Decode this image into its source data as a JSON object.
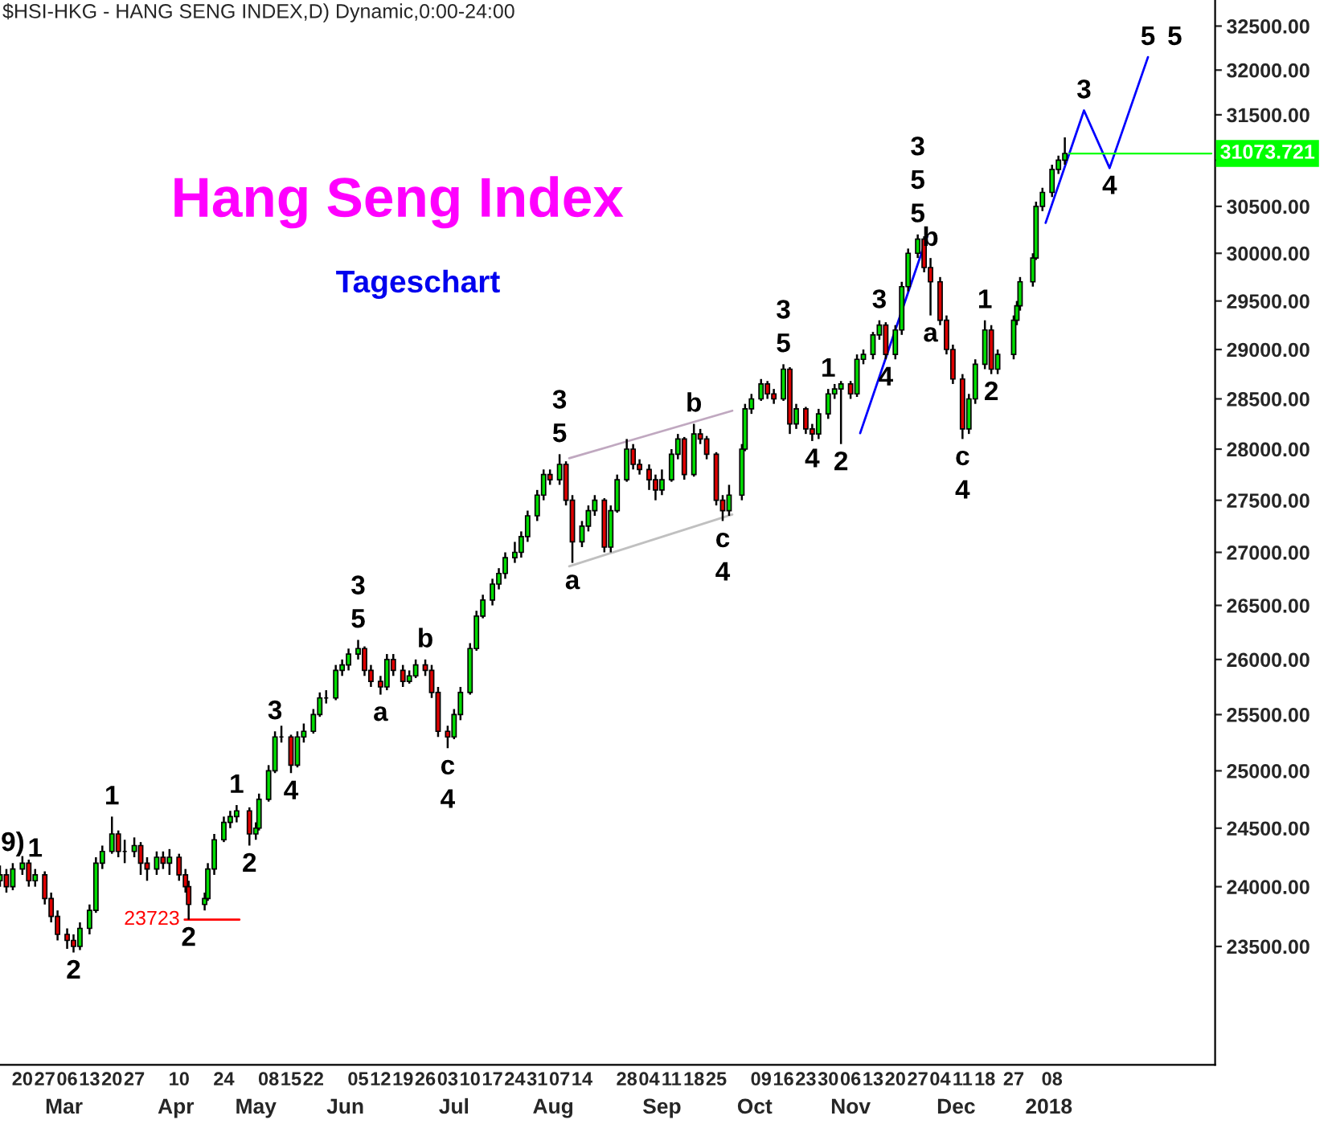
{
  "chart_data": {
    "type": "candlestick",
    "title": "Hang Seng Index",
    "subtitle": "Tageschart",
    "log": "y",
    "x": [
      "2017-02-13",
      "2017-02-15",
      "2017-02-17",
      "2017-02-20",
      "2017-02-22",
      "2017-02-24",
      "2017-02-27",
      "2017-03-01",
      "2017-03-03",
      "2017-03-06",
      "2017-03-08",
      "2017-03-10",
      "2017-03-13",
      "2017-03-15",
      "2017-03-17",
      "2017-03-20",
      "2017-03-22",
      "2017-03-24",
      "2017-03-27",
      "2017-03-29",
      "2017-03-31",
      "2017-04-03",
      "2017-04-05",
      "2017-04-07",
      "2017-04-10",
      "2017-04-12",
      "2017-04-13",
      "2017-04-18",
      "2017-04-19",
      "2017-04-21",
      "2017-04-24",
      "2017-04-26",
      "2017-04-28",
      "2017-05-02",
      "2017-05-04",
      "2017-05-05",
      "2017-05-08",
      "2017-05-10",
      "2017-05-12",
      "2017-05-15",
      "2017-05-17",
      "2017-05-19",
      "2017-05-22",
      "2017-05-24",
      "2017-05-26",
      "2017-05-29",
      "2017-05-31",
      "2017-06-02",
      "2017-06-05",
      "2017-06-07",
      "2017-06-09",
      "2017-06-12",
      "2017-06-14",
      "2017-06-16",
      "2017-06-19",
      "2017-06-21",
      "2017-06-23",
      "2017-06-26",
      "2017-06-28",
      "2017-06-30",
      "2017-07-03",
      "2017-07-05",
      "2017-07-07",
      "2017-07-10",
      "2017-07-12",
      "2017-07-14",
      "2017-07-17",
      "2017-07-19",
      "2017-07-21",
      "2017-07-24",
      "2017-07-26",
      "2017-07-28",
      "2017-07-31",
      "2017-08-02",
      "2017-08-04",
      "2017-08-07",
      "2017-08-09",
      "2017-08-11",
      "2017-08-14",
      "2017-08-16",
      "2017-08-18",
      "2017-08-21",
      "2017-08-23",
      "2017-08-25",
      "2017-08-28",
      "2017-08-30",
      "2017-09-01",
      "2017-09-04",
      "2017-09-06",
      "2017-09-08",
      "2017-09-11",
      "2017-09-13",
      "2017-09-15",
      "2017-09-18",
      "2017-09-20",
      "2017-09-22",
      "2017-09-25",
      "2017-09-27",
      "2017-09-29",
      "2017-10-03",
      "2017-10-04",
      "2017-10-06",
      "2017-10-09",
      "2017-10-11",
      "2017-10-13",
      "2017-10-16",
      "2017-10-18",
      "2017-10-20",
      "2017-10-23",
      "2017-10-25",
      "2017-10-27",
      "2017-10-30",
      "2017-11-01",
      "2017-11-03",
      "2017-11-06",
      "2017-11-08",
      "2017-11-10",
      "2017-11-13",
      "2017-11-15",
      "2017-11-17",
      "2017-11-20",
      "2017-11-22",
      "2017-11-24",
      "2017-11-27",
      "2017-11-29",
      "2017-12-01",
      "2017-12-04",
      "2017-12-06",
      "2017-12-08",
      "2017-12-11",
      "2017-12-13",
      "2017-12-15",
      "2017-12-18",
      "2017-12-20",
      "2017-12-22",
      "2017-12-27",
      "2017-12-28",
      "2017-12-29",
      "2018-01-02",
      "2018-01-03",
      "2018-01-05",
      "2018-01-08",
      "2018-01-10",
      "2018-01-12"
    ],
    "ohlc": [
      [
        24050,
        24180,
        24000,
        24100
      ],
      [
        24100,
        24150,
        23950,
        24000
      ],
      [
        24000,
        24200,
        23970,
        24150
      ],
      [
        24150,
        24260,
        24100,
        24200
      ],
      [
        24200,
        24230,
        24000,
        24050
      ],
      [
        24050,
        24150,
        24000,
        24100
      ],
      [
        24100,
        24130,
        23850,
        23900
      ],
      [
        23900,
        23950,
        23700,
        23750
      ],
      [
        23750,
        23800,
        23550,
        23600
      ],
      [
        23600,
        23650,
        23480,
        23550
      ],
      [
        23550,
        23600,
        23450,
        23500
      ],
      [
        23500,
        23700,
        23470,
        23650
      ],
      [
        23650,
        23850,
        23600,
        23800
      ],
      [
        23800,
        24250,
        23780,
        24200
      ],
      [
        24200,
        24350,
        24150,
        24300
      ],
      [
        24300,
        24600,
        24280,
        24450
      ],
      [
        24450,
        24480,
        24250,
        24300
      ],
      [
        24300,
        24400,
        24200,
        24300
      ],
      [
        24300,
        24420,
        24250,
        24350
      ],
      [
        24350,
        24380,
        24100,
        24200
      ],
      [
        24200,
        24250,
        24050,
        24150
      ],
      [
        24150,
        24300,
        24100,
        24250
      ],
      [
        24250,
        24300,
        24150,
        24200
      ],
      [
        24200,
        24320,
        24100,
        24250
      ],
      [
        24250,
        24280,
        24050,
        24100
      ],
      [
        24100,
        24150,
        23950,
        24000
      ],
      [
        24000,
        24050,
        23723,
        23850
      ],
      [
        23850,
        23950,
        23800,
        23900
      ],
      [
        23900,
        24200,
        23880,
        24150
      ],
      [
        24150,
        24450,
        24100,
        24400
      ],
      [
        24400,
        24600,
        24380,
        24550
      ],
      [
        24550,
        24650,
        24500,
        24600
      ],
      [
        24600,
        24700,
        24550,
        24650
      ],
      [
        24650,
        24680,
        24350,
        24450
      ],
      [
        24450,
        24550,
        24400,
        24500
      ],
      [
        24500,
        24800,
        24480,
        24750
      ],
      [
        24750,
        25050,
        24730,
        25000
      ],
      [
        25000,
        25350,
        24980,
        25300
      ],
      [
        25300,
        25400,
        25250,
        25300
      ],
      [
        25300,
        25320,
        24980,
        25050
      ],
      [
        25050,
        25350,
        25030,
        25300
      ],
      [
        25300,
        25420,
        25250,
        25350
      ],
      [
        25350,
        25550,
        25330,
        25500
      ],
      [
        25500,
        25700,
        25480,
        25650
      ],
      [
        25650,
        25720,
        25600,
        25650
      ],
      [
        25650,
        25950,
        25630,
        25900
      ],
      [
        25900,
        26000,
        25850,
        25950
      ],
      [
        25950,
        26100,
        25900,
        26050
      ],
      [
        26050,
        26180,
        26000,
        26100
      ],
      [
        26100,
        26120,
        25850,
        25900
      ],
      [
        25900,
        25950,
        25750,
        25800
      ],
      [
        25800,
        25850,
        25680,
        25750
      ],
      [
        25750,
        26050,
        25720,
        26000
      ],
      [
        26000,
        26050,
        25850,
        25900
      ],
      [
        25900,
        25950,
        25750,
        25800
      ],
      [
        25800,
        25900,
        25780,
        25850
      ],
      [
        25850,
        26000,
        25830,
        25950
      ],
      [
        25950,
        26000,
        25850,
        25900
      ],
      [
        25900,
        25950,
        25650,
        25700
      ],
      [
        25700,
        25750,
        25300,
        25350
      ],
      [
        25350,
        25400,
        25200,
        25300
      ],
      [
        25300,
        25550,
        25280,
        25500
      ],
      [
        25500,
        25750,
        25450,
        25700
      ],
      [
        25700,
        26150,
        25680,
        26100
      ],
      [
        26100,
        26450,
        26080,
        26400
      ],
      [
        26400,
        26600,
        26380,
        26550
      ],
      [
        26550,
        26750,
        26500,
        26700
      ],
      [
        26700,
        26850,
        26650,
        26800
      ],
      [
        26800,
        27000,
        26750,
        26950
      ],
      [
        26950,
        27100,
        26900,
        27000
      ],
      [
        27000,
        27200,
        26950,
        27150
      ],
      [
        27150,
        27400,
        27100,
        27350
      ],
      [
        27350,
        27600,
        27300,
        27550
      ],
      [
        27550,
        27800,
        27500,
        27750
      ],
      [
        27750,
        27800,
        27650,
        27700
      ],
      [
        27700,
        27950,
        27650,
        27850
      ],
      [
        27850,
        27880,
        27450,
        27500
      ],
      [
        27500,
        27550,
        26900,
        27100
      ],
      [
        27100,
        27300,
        27050,
        27250
      ],
      [
        27250,
        27450,
        27200,
        27400
      ],
      [
        27400,
        27550,
        27350,
        27500
      ],
      [
        27500,
        27520,
        27000,
        27050
      ],
      [
        27050,
        27450,
        27000,
        27400
      ],
      [
        27400,
        27750,
        27380,
        27700
      ],
      [
        27700,
        28100,
        27680,
        28000
      ],
      [
        28000,
        28050,
        27800,
        27850
      ],
      [
        27850,
        27900,
        27750,
        27800
      ],
      [
        27800,
        27850,
        27600,
        27700
      ],
      [
        27700,
        27750,
        27500,
        27600
      ],
      [
        27600,
        27800,
        27550,
        27700
      ],
      [
        27700,
        28000,
        27680,
        27950
      ],
      [
        27950,
        28150,
        27900,
        28100
      ],
      [
        28100,
        28120,
        27700,
        27750
      ],
      [
        27750,
        28250,
        27730,
        28150
      ],
      [
        28150,
        28200,
        28050,
        28100
      ],
      [
        28100,
        28130,
        27900,
        27950
      ],
      [
        27950,
        27970,
        27450,
        27500
      ],
      [
        27500,
        27550,
        27300,
        27400
      ],
      [
        27400,
        27650,
        27350,
        27550
      ],
      [
        27550,
        28050,
        27500,
        28000
      ],
      [
        28000,
        28450,
        27980,
        28400
      ],
      [
        28400,
        28550,
        28350,
        28500
      ],
      [
        28500,
        28700,
        28480,
        28650
      ],
      [
        28650,
        28680,
        28500,
        28550
      ],
      [
        28550,
        28600,
        28450,
        28500
      ],
      [
        28500,
        28850,
        28480,
        28800
      ],
      [
        28800,
        28820,
        28150,
        28250
      ],
      [
        28250,
        28450,
        28200,
        28400
      ],
      [
        28400,
        28420,
        28150,
        28200
      ],
      [
        28200,
        28250,
        28080,
        28150
      ],
      [
        28150,
        28400,
        28100,
        28350
      ],
      [
        28350,
        28600,
        28300,
        28550
      ],
      [
        28550,
        28650,
        28500,
        28600
      ],
      [
        28600,
        28680,
        28050,
        28650
      ],
      [
        28650,
        28680,
        28500,
        28550
      ],
      [
        28550,
        28950,
        28520,
        28900
      ],
      [
        28900,
        29000,
        28850,
        28950
      ],
      [
        28950,
        29180,
        28900,
        29150
      ],
      [
        29150,
        29300,
        29100,
        29250
      ],
      [
        29250,
        29280,
        28900,
        28950
      ],
      [
        28950,
        29250,
        28900,
        29200
      ],
      [
        29200,
        29700,
        29150,
        29650
      ],
      [
        29650,
        30050,
        29600,
        30000
      ],
      [
        30000,
        30200,
        29950,
        30150
      ],
      [
        30150,
        30180,
        29800,
        29850
      ],
      [
        29850,
        29950,
        29350,
        29700
      ],
      [
        29700,
        29750,
        29250,
        29300
      ],
      [
        29300,
        29350,
        28950,
        29000
      ],
      [
        29000,
        29050,
        28650,
        28700
      ],
      [
        28700,
        28750,
        28100,
        28200
      ],
      [
        28200,
        28550,
        28150,
        28500
      ],
      [
        28500,
        28900,
        28450,
        28850
      ],
      [
        28850,
        29300,
        28800,
        29200
      ],
      [
        29200,
        29250,
        28750,
        28800
      ],
      [
        28800,
        29000,
        28750,
        28950
      ],
      [
        28950,
        29350,
        28900,
        29300
      ],
      [
        29300,
        29500,
        29250,
        29450
      ],
      [
        29450,
        29750,
        29400,
        29700
      ],
      [
        29700,
        30000,
        29650,
        29950
      ],
      [
        29950,
        30550,
        29930,
        30500
      ],
      [
        30500,
        30700,
        30450,
        30650
      ],
      [
        30650,
        30950,
        30600,
        30900
      ],
      [
        30900,
        31050,
        30850,
        31000
      ],
      [
        31000,
        31250,
        30950,
        31073.721
      ]
    ],
    "series": [
      {
        "type": "line",
        "color": "#0000ff",
        "x": [
          "2017-11-09",
          "2017-11-30"
        ],
        "values": [
          28158,
          30183
        ]
      },
      {
        "type": "line",
        "color": "#0000ff",
        "x": [
          "2018-01-06",
          "2018-01-18",
          "2018-01-26",
          "2018-02-07"
        ],
        "values": [
          30323,
          31548,
          30915,
          32146
        ]
      },
      {
        "type": "line",
        "color": "#c0a8c0",
        "x": [
          "2017-08-10",
          "2017-09-30"
        ],
        "values": [
          27910,
          28381
        ]
      },
      {
        "type": "line",
        "color": "#c0c0c0",
        "x": [
          "2017-08-10",
          "2017-09-30"
        ],
        "values": [
          26868,
          27362
        ]
      }
    ],
    "ref_lines": [
      {
        "axis": "y",
        "value": 23723,
        "label": "23723",
        "color": "#ff0000"
      }
    ],
    "xlim": [
      "2017-02-13",
      "2018-02-28"
    ],
    "xticks": [
      {
        "value": "2017-02-20",
        "label": "20"
      },
      {
        "value": "2017-02-27",
        "label": "27"
      },
      {
        "value": "2017-03-06",
        "label": "06"
      },
      {
        "value": "2017-03-13",
        "label": "13"
      },
      {
        "value": "2017-03-20",
        "label": "20"
      },
      {
        "value": "2017-03-27",
        "label": "27"
      },
      {
        "value": "2017-04-10",
        "label": "10"
      },
      {
        "value": "2017-04-24",
        "label": "24"
      },
      {
        "value": "2017-05-08",
        "label": "08"
      },
      {
        "value": "2017-05-15",
        "label": "15"
      },
      {
        "value": "2017-05-22",
        "label": "22"
      },
      {
        "value": "2017-06-05",
        "label": "05"
      },
      {
        "value": "2017-06-12",
        "label": "12"
      },
      {
        "value": "2017-06-19",
        "label": "19"
      },
      {
        "value": "2017-06-26",
        "label": "26"
      },
      {
        "value": "2017-07-03",
        "label": "03"
      },
      {
        "value": "2017-07-10",
        "label": "10"
      },
      {
        "value": "2017-07-17",
        "label": "17"
      },
      {
        "value": "2017-07-24",
        "label": "24"
      },
      {
        "value": "2017-07-31",
        "label": "31"
      },
      {
        "value": "2017-08-07",
        "label": "07"
      },
      {
        "value": "2017-08-14",
        "label": "14"
      },
      {
        "value": "2017-08-28",
        "label": "28"
      },
      {
        "value": "2017-09-04",
        "label": "04"
      },
      {
        "value": "2017-09-11",
        "label": "11"
      },
      {
        "value": "2017-09-18",
        "label": "18"
      },
      {
        "value": "2017-09-25",
        "label": "25"
      },
      {
        "value": "2017-10-09",
        "label": "09"
      },
      {
        "value": "2017-10-16",
        "label": "16"
      },
      {
        "value": "2017-10-23",
        "label": "23"
      },
      {
        "value": "2017-10-30",
        "label": "30"
      },
      {
        "value": "2017-11-06",
        "label": "06"
      },
      {
        "value": "2017-11-13",
        "label": "13"
      },
      {
        "value": "2017-11-20",
        "label": "20"
      },
      {
        "value": "2017-11-27",
        "label": "27"
      },
      {
        "value": "2017-12-04",
        "label": "04"
      },
      {
        "value": "2017-12-11",
        "label": "11"
      },
      {
        "value": "2017-12-18",
        "label": "18"
      },
      {
        "value": "2017-12-27",
        "label": "27"
      },
      {
        "value": "2018-01-08",
        "label": "08"
      }
    ],
    "x2lim": [
      "2017-02-13",
      "2018-02-28"
    ],
    "x2ticks": [
      {
        "value": "2017-03-05",
        "label": "Mar"
      },
      {
        "value": "2017-04-09",
        "label": "Apr"
      },
      {
        "value": "2017-05-04",
        "label": "May"
      },
      {
        "value": "2017-06-01",
        "label": "Jun"
      },
      {
        "value": "2017-07-05",
        "label": "Jul"
      },
      {
        "value": "2017-08-05",
        "label": "Aug"
      },
      {
        "value": "2017-09-08",
        "label": "Sep"
      },
      {
        "value": "2017-10-07",
        "label": "Oct"
      },
      {
        "value": "2017-11-06",
        "label": "Nov"
      },
      {
        "value": "2017-12-09",
        "label": "Dec"
      },
      {
        "value": "2018-01-07",
        "label": "2018"
      }
    ],
    "ylim": [
      22540,
      32800
    ],
    "yticks": [
      {
        "value": 23500,
        "label": "23500.00"
      },
      {
        "value": 24000,
        "label": "24000.00"
      },
      {
        "value": 24500,
        "label": "24500.00"
      },
      {
        "value": 25000,
        "label": "25000.00"
      },
      {
        "value": 25500,
        "label": "25500.00"
      },
      {
        "value": 26000,
        "label": "26000.00"
      },
      {
        "value": 26500,
        "label": "26500.00"
      },
      {
        "value": 27000,
        "label": "27000.00"
      },
      {
        "value": 27500,
        "label": "27500.00"
      },
      {
        "value": 28000,
        "label": "28000.00"
      },
      {
        "value": 28500,
        "label": "28500.00"
      },
      {
        "value": 29000,
        "label": "29000.00"
      },
      {
        "value": 29500,
        "label": "29500.00"
      },
      {
        "value": 30000,
        "label": "30000.00"
      },
      {
        "value": 30500,
        "label": "30500.00"
      },
      {
        "value": 31000,
        "label": null
      },
      {
        "value": 31500,
        "label": "31500.00"
      },
      {
        "value": 32000,
        "label": "32000.00"
      },
      {
        "value": 32500,
        "label": "32500.00"
      }
    ],
    "grid": false,
    "annotations": [
      "$HSI-HKG - HANG SENG INDEX,D) Dynamic,0:00-24:00",
      {
        "text": "31073.721",
        "x": "2018-01-12",
        "y": 31073.721
      },
      {
        "text": "9)",
        "x": "2017-02-17",
        "y": 24200
      },
      {
        "text": "1",
        "x": "2017-02-24",
        "y": 24150
      },
      {
        "text": "2",
        "x": "2017-03-08",
        "y": 23450
      },
      {
        "text": "1",
        "x": "2017-03-20",
        "y": 24600
      },
      {
        "text": "2",
        "x": "2017-04-13",
        "y": 23723
      },
      {
        "text": "1",
        "x": "2017-04-28",
        "y": 24700
      },
      {
        "text": "2",
        "x": "2017-05-02",
        "y": 24350
      },
      {
        "text": "3",
        "x": "2017-05-10",
        "y": 25350
      },
      {
        "text": "4",
        "x": "2017-05-15",
        "y": 24980
      },
      {
        "text": "5",
        "x": "2017-06-05",
        "y": 26180
      },
      {
        "text": "3",
        "x": "2017-06-05",
        "y": 26180
      },
      {
        "text": "a",
        "x": "2017-06-12",
        "y": 25680
      },
      {
        "text": "b",
        "x": "2017-06-26",
        "y": 26000
      },
      {
        "text": "c",
        "x": "2017-07-03",
        "y": 25200
      },
      {
        "text": "4",
        "x": "2017-07-03",
        "y": 25200
      },
      {
        "text": "5",
        "x": "2017-08-07",
        "y": 27950
      },
      {
        "text": "3",
        "x": "2017-08-07",
        "y": 27950
      },
      {
        "text": "a",
        "x": "2017-08-11",
        "y": 26900
      },
      {
        "text": "b",
        "x": "2017-09-18",
        "y": 28250
      },
      {
        "text": "c",
        "x": "2017-09-27",
        "y": 27300
      },
      {
        "text": "4",
        "x": "2017-09-27",
        "y": 27300
      },
      {
        "text": "5",
        "x": "2017-10-16",
        "y": 28850
      },
      {
        "text": "3",
        "x": "2017-10-16",
        "y": 28850
      },
      {
        "text": "4",
        "x": "2017-10-25",
        "y": 28080
      },
      {
        "text": "1",
        "x": "2017-10-30",
        "y": 28600
      },
      {
        "text": "2",
        "x": "2017-11-03",
        "y": 28050
      },
      {
        "text": "3",
        "x": "2017-11-15",
        "y": 29300
      },
      {
        "text": "4",
        "x": "2017-11-17",
        "y": 28900
      },
      {
        "text": "5",
        "x": "2017-11-27",
        "y": 30200
      },
      {
        "text": "5",
        "x": "2017-11-27",
        "y": 30200
      },
      {
        "text": "3",
        "x": "2017-11-27",
        "y": 30200
      },
      {
        "text": "b",
        "x": "2017-12-01",
        "y": 29950
      },
      {
        "text": "a",
        "x": "2017-12-01",
        "y": 29350
      },
      {
        "text": "c",
        "x": "2017-12-11",
        "y": 28100
      },
      {
        "text": "4",
        "x": "2017-12-11",
        "y": 28100
      },
      {
        "text": "1",
        "x": "2017-12-18",
        "y": 29300
      },
      {
        "text": "2",
        "x": "2017-12-20",
        "y": 28750
      },
      {
        "text": "3",
        "x": "2018-01-18",
        "y": 31548
      },
      {
        "text": "4",
        "x": "2018-01-26",
        "y": 30915
      },
      {
        "text": "5",
        "x": "2018-02-07",
        "y": 32146
      },
      {
        "text": "5",
        "x": "2018-02-07",
        "y": 32146
      }
    ]
  }
}
